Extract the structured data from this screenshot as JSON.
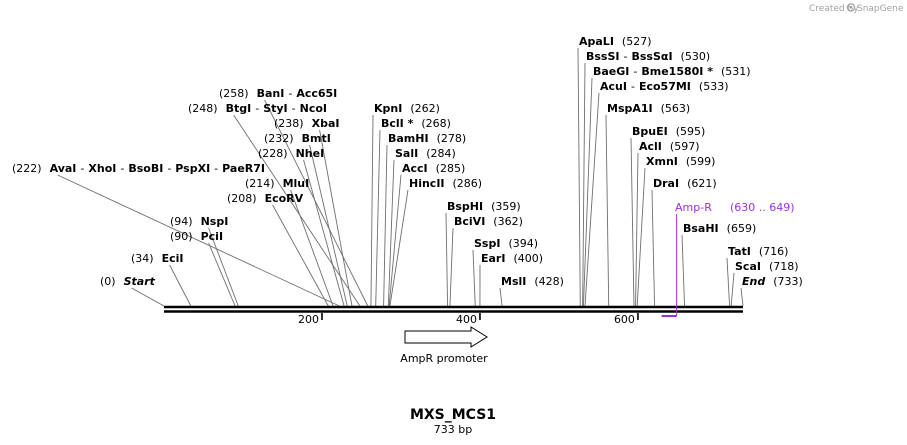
{
  "credit": "Created by",
  "credit_brand": "SnapGene",
  "title": "MXS_MCS1",
  "length_label": "733 bp",
  "sequence_length": 733,
  "colors": {
    "primer": "#9b30d9",
    "line": "#000000",
    "credit": "#a0a0a0"
  },
  "ticks": [
    {
      "pos": 200,
      "label": "200"
    },
    {
      "pos": 400,
      "label": "400"
    },
    {
      "pos": 600,
      "label": "600"
    }
  ],
  "feature": {
    "name": "AmpR promoter",
    "start": 305,
    "end": 410,
    "direction": "forward"
  },
  "primer": {
    "name": "Amp-R",
    "range": "(630 .. 649)",
    "start": 630,
    "end": 649
  },
  "sites": [
    {
      "pos": 0,
      "pos_label": "(0)",
      "names": [
        "Start"
      ],
      "style": "italic",
      "pos_after": false
    },
    {
      "pos": 34,
      "pos_label": "(34)",
      "names": [
        "EciI"
      ],
      "pos_after": false
    },
    {
      "pos": 90,
      "pos_label": "(90)",
      "names": [
        "PciI"
      ],
      "pos_after": false
    },
    {
      "pos": 94,
      "pos_label": "(94)",
      "names": [
        "NspI"
      ],
      "pos_after": false
    },
    {
      "pos": 208,
      "pos_label": "(208)",
      "names": [
        "EcoRV"
      ],
      "pos_after": false
    },
    {
      "pos": 214,
      "pos_label": "(214)",
      "names": [
        "MluI"
      ],
      "pos_after": false
    },
    {
      "pos": 222,
      "pos_label": "(222)",
      "names": [
        "AvaI",
        "XhoI",
        "BsoBI",
        "PspXI",
        "PaeR7I"
      ],
      "pos_after": false
    },
    {
      "pos": 228,
      "pos_label": "(228)",
      "names": [
        "NheI"
      ],
      "pos_after": false
    },
    {
      "pos": 232,
      "pos_label": "(232)",
      "names": [
        "BmtI"
      ],
      "pos_after": false
    },
    {
      "pos": 238,
      "pos_label": "(238)",
      "names": [
        "XbaI"
      ],
      "pos_after": false
    },
    {
      "pos": 248,
      "pos_label": "(248)",
      "names": [
        "BtgI",
        "StyI",
        "NcoI"
      ],
      "pos_after": false
    },
    {
      "pos": 258,
      "pos_label": "(258)",
      "names": [
        "BanI",
        "Acc65I"
      ],
      "pos_after": false
    },
    {
      "pos": 262,
      "pos_label": "(262)",
      "names": [
        "KpnI"
      ],
      "pos_after": true
    },
    {
      "pos": 268,
      "pos_label": "(268)",
      "names": [
        "BclI *"
      ],
      "pos_after": true
    },
    {
      "pos": 278,
      "pos_label": "(278)",
      "names": [
        "BamHI"
      ],
      "pos_after": true
    },
    {
      "pos": 284,
      "pos_label": "(284)",
      "names": [
        "SalI"
      ],
      "pos_after": true
    },
    {
      "pos": 285,
      "pos_label": "(285)",
      "names": [
        "AccI"
      ],
      "pos_after": true
    },
    {
      "pos": 286,
      "pos_label": "(286)",
      "names": [
        "HincII"
      ],
      "pos_after": true
    },
    {
      "pos": 359,
      "pos_label": "(359)",
      "names": [
        "BspHI"
      ],
      "pos_after": true
    },
    {
      "pos": 362,
      "pos_label": "(362)",
      "names": [
        "BciVI"
      ],
      "pos_after": true
    },
    {
      "pos": 394,
      "pos_label": "(394)",
      "names": [
        "SspI"
      ],
      "pos_after": true
    },
    {
      "pos": 400,
      "pos_label": "(400)",
      "names": [
        "EarI"
      ],
      "pos_after": true
    },
    {
      "pos": 428,
      "pos_label": "(428)",
      "names": [
        "MslI"
      ],
      "pos_after": true
    },
    {
      "pos": 527,
      "pos_label": "(527)",
      "names": [
        "ApaLI"
      ],
      "pos_after": true
    },
    {
      "pos": 530,
      "pos_label": "(530)",
      "names": [
        "BssSI",
        "BssSαI"
      ],
      "pos_after": true
    },
    {
      "pos": 531,
      "pos_label": "(531)",
      "names": [
        "BaeGI",
        "Bme1580I *"
      ],
      "pos_after": true
    },
    {
      "pos": 533,
      "pos_label": "(533)",
      "names": [
        "AcuI",
        "Eco57MI"
      ],
      "pos_after": true
    },
    {
      "pos": 563,
      "pos_label": "(563)",
      "names": [
        "MspA1I"
      ],
      "pos_after": true
    },
    {
      "pos": 595,
      "pos_label": "(595)",
      "names": [
        "BpuEI"
      ],
      "pos_after": true
    },
    {
      "pos": 597,
      "pos_label": "(597)",
      "names": [
        "AclI"
      ],
      "pos_after": true
    },
    {
      "pos": 599,
      "pos_label": "(599)",
      "names": [
        "XmnI"
      ],
      "pos_after": true
    },
    {
      "pos": 621,
      "pos_label": "(621)",
      "names": [
        "DraI"
      ],
      "pos_after": true
    },
    {
      "pos": 659,
      "pos_label": "(659)",
      "names": [
        "BsaHI"
      ],
      "pos_after": true
    },
    {
      "pos": 716,
      "pos_label": "(716)",
      "names": [
        "TatI"
      ],
      "pos_after": true
    },
    {
      "pos": 718,
      "pos_label": "(718)",
      "names": [
        "ScaI"
      ],
      "pos_after": true
    },
    {
      "pos": 733,
      "pos_label": "(733)",
      "names": [
        "End"
      ],
      "style": "italic",
      "pos_after": true
    }
  ]
}
